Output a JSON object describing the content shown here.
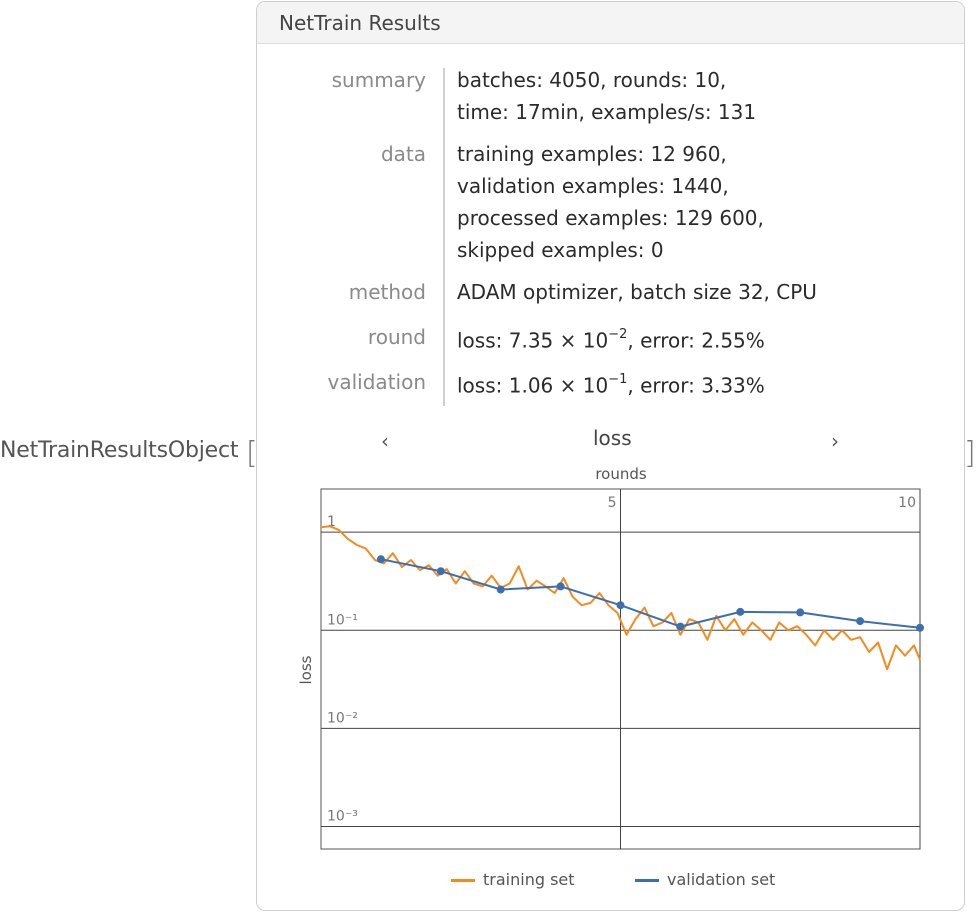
{
  "expression": {
    "head": "NetTrainResultsObject",
    "open_bracket": "[",
    "close_bracket": "]"
  },
  "panel": {
    "title": "NetTrain Results",
    "rows": [
      {
        "label": "summary",
        "lines": [
          "batches: 4050, rounds: 10,",
          "time: 17min, examples/s: 131"
        ]
      },
      {
        "label": "data",
        "lines": [
          "training examples: 12 960,",
          "validation examples: 1440,",
          "processed examples: 129 600,",
          "skipped examples: 0"
        ]
      },
      {
        "label": "method",
        "lines": [
          "ADAM optimizer, batch size 32, CPU"
        ]
      },
      {
        "label": "round",
        "loss_mantissa": "7.35",
        "loss_exp": "−2",
        "error": "2.55%"
      },
      {
        "label": "validation",
        "loss_mantissa": "1.06",
        "loss_exp": "−1",
        "error": "3.33%"
      }
    ],
    "prefix_loss": "loss: ",
    "times": " × 10",
    "prefix_error": ", error: ",
    "nav_prev": "‹",
    "nav_next": "›"
  },
  "chart_data": {
    "type": "line",
    "title": "loss",
    "xlabel": "rounds",
    "ylabel": "loss",
    "x_ticks": [
      "5",
      "10"
    ],
    "y_ticks": [
      "1",
      "10⁻¹",
      "10⁻²",
      "10⁻³"
    ],
    "xlim": [
      0,
      10
    ],
    "ylim_log10": [
      -3.23,
      0.44
    ],
    "y_scale": "log",
    "grid": true,
    "legend_position": "bottom",
    "colors": {
      "training": "#f28c1e",
      "validation": "#3d6fae"
    },
    "series": [
      {
        "name": "training set",
        "x": [
          0.0,
          0.15,
          0.3,
          0.45,
          0.6,
          0.75,
          0.9,
          1.05,
          1.2,
          1.35,
          1.5,
          1.65,
          1.8,
          1.95,
          2.1,
          2.25,
          2.4,
          2.55,
          2.7,
          2.85,
          3.0,
          3.15,
          3.3,
          3.45,
          3.6,
          3.75,
          3.9,
          4.05,
          4.2,
          4.35,
          4.5,
          4.65,
          4.8,
          4.95,
          5.1,
          5.25,
          5.4,
          5.55,
          5.7,
          5.85,
          6.0,
          6.15,
          6.3,
          6.45,
          6.6,
          6.75,
          6.9,
          7.05,
          7.2,
          7.35,
          7.5,
          7.65,
          7.8,
          7.95,
          8.1,
          8.25,
          8.4,
          8.55,
          8.7,
          8.85,
          9.0,
          9.15,
          9.3,
          9.45,
          9.6,
          9.75,
          9.9,
          10.0
        ],
        "y": [
          1.12,
          1.15,
          1.05,
          0.85,
          0.74,
          0.68,
          0.52,
          0.48,
          0.61,
          0.44,
          0.52,
          0.41,
          0.46,
          0.36,
          0.42,
          0.3,
          0.4,
          0.3,
          0.28,
          0.36,
          0.27,
          0.3,
          0.45,
          0.26,
          0.32,
          0.28,
          0.24,
          0.34,
          0.22,
          0.18,
          0.19,
          0.24,
          0.18,
          0.15,
          0.09,
          0.13,
          0.17,
          0.11,
          0.12,
          0.15,
          0.09,
          0.13,
          0.12,
          0.08,
          0.14,
          0.1,
          0.13,
          0.09,
          0.12,
          0.1,
          0.08,
          0.12,
          0.1,
          0.11,
          0.09,
          0.07,
          0.1,
          0.08,
          0.1,
          0.08,
          0.085,
          0.06,
          0.075,
          0.04,
          0.07,
          0.055,
          0.07,
          0.05
        ]
      },
      {
        "name": "validation set",
        "x": [
          1,
          2,
          3,
          4,
          5,
          6,
          7,
          8,
          9,
          10
        ],
        "y": [
          0.53,
          0.4,
          0.26,
          0.28,
          0.18,
          0.109,
          0.154,
          0.152,
          0.124,
          0.106
        ]
      }
    ]
  }
}
